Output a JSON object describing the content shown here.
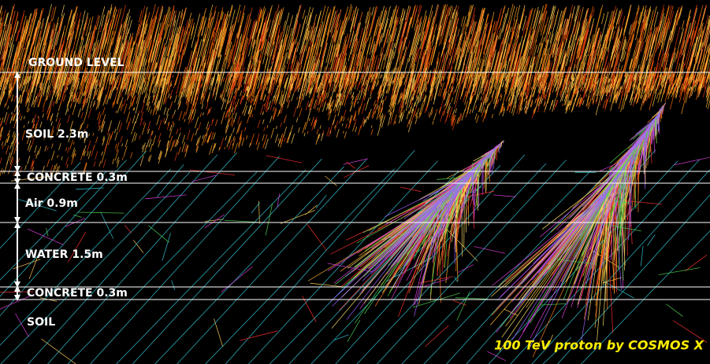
{
  "labels": {
    "ground_level": "GROUND LEVEL",
    "soil_top": "SOIL 2.3m",
    "concrete_upper": "CONCRETE 0.3m",
    "air": "Air 0.9m",
    "water": "WATER 1.5m",
    "concrete_lower": "CONCRETE 0.3m",
    "soil_bottom": "SOIL"
  },
  "credit": "100 TeV proton by COSMOS X"
}
